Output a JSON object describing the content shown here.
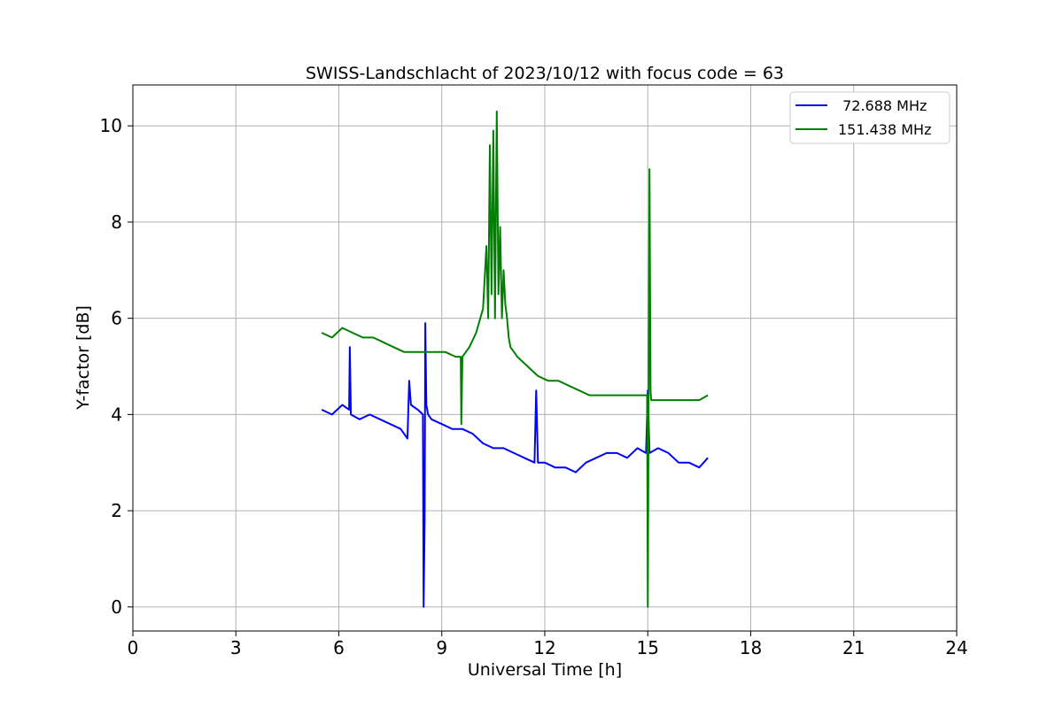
{
  "chart_data": {
    "type": "line",
    "title": "SWISS-Landschlacht of 2023/10/12 with focus code = 63",
    "xlabel": "Universal Time [h]",
    "ylabel": "Y-factor [dB]",
    "xlim": [
      0,
      24
    ],
    "ylim": [
      -0.5,
      10.85
    ],
    "xticks": [
      0,
      3,
      6,
      9,
      12,
      15,
      18,
      21,
      24
    ],
    "yticks": [
      0,
      2,
      4,
      6,
      8,
      10
    ],
    "grid": true,
    "legend_position": "top-right",
    "series": [
      {
        "name": " 72.688 MHz",
        "color": "#0000ff",
        "x": [
          5.5,
          5.8,
          6.1,
          6.3,
          6.32,
          6.35,
          6.6,
          6.9,
          7.2,
          7.5,
          7.8,
          8.0,
          8.05,
          8.1,
          8.3,
          8.45,
          8.47,
          8.5,
          8.52,
          8.55,
          8.6,
          8.7,
          9.0,
          9.3,
          9.6,
          9.9,
          10.2,
          10.5,
          10.8,
          11.1,
          11.4,
          11.7,
          11.75,
          11.8,
          12.0,
          12.3,
          12.6,
          12.9,
          13.2,
          13.5,
          13.8,
          14.1,
          14.4,
          14.7,
          14.95,
          15.0,
          15.05,
          15.3,
          15.6,
          15.9,
          16.2,
          16.5,
          16.75
        ],
        "y": [
          4.1,
          4.0,
          4.2,
          4.1,
          5.4,
          4.0,
          3.9,
          4.0,
          3.9,
          3.8,
          3.7,
          3.5,
          4.7,
          4.2,
          4.1,
          4.0,
          0.0,
          1.8,
          5.9,
          4.2,
          4.0,
          3.9,
          3.8,
          3.7,
          3.7,
          3.6,
          3.4,
          3.3,
          3.3,
          3.2,
          3.1,
          3.0,
          4.5,
          3.0,
          3.0,
          2.9,
          2.9,
          2.8,
          3.0,
          3.1,
          3.2,
          3.2,
          3.1,
          3.3,
          3.2,
          4.5,
          3.2,
          3.3,
          3.2,
          3.0,
          3.0,
          2.9,
          3.1
        ]
      },
      {
        "name": "151.438 MHz",
        "color": "#008000",
        "x": [
          5.5,
          5.8,
          6.1,
          6.4,
          6.7,
          7.0,
          7.3,
          7.6,
          7.9,
          8.2,
          8.5,
          8.8,
          9.1,
          9.4,
          9.55,
          9.57,
          9.6,
          9.8,
          10.0,
          10.2,
          10.3,
          10.35,
          10.4,
          10.45,
          10.5,
          10.55,
          10.6,
          10.65,
          10.7,
          10.75,
          10.8,
          10.85,
          10.9,
          10.95,
          11.0,
          11.2,
          11.5,
          11.8,
          12.1,
          12.4,
          12.7,
          13.0,
          13.3,
          13.6,
          13.9,
          14.2,
          14.5,
          14.8,
          14.98,
          15.0,
          15.05,
          15.08,
          15.1,
          15.3,
          15.6,
          15.9,
          16.2,
          16.5,
          16.75
        ],
        "y": [
          5.7,
          5.6,
          5.8,
          5.7,
          5.6,
          5.6,
          5.5,
          5.4,
          5.3,
          5.3,
          5.3,
          5.3,
          5.3,
          5.2,
          5.2,
          3.8,
          5.2,
          5.4,
          5.7,
          6.2,
          7.5,
          6.0,
          9.6,
          6.5,
          9.9,
          6.0,
          10.3,
          6.5,
          7.9,
          6.0,
          7.0,
          6.3,
          6.0,
          5.6,
          5.4,
          5.2,
          5.0,
          4.8,
          4.7,
          4.7,
          4.6,
          4.5,
          4.4,
          4.4,
          4.4,
          4.4,
          4.4,
          4.4,
          4.4,
          0.0,
          9.1,
          4.5,
          4.3,
          4.3,
          4.3,
          4.3,
          4.3,
          4.3,
          4.4
        ]
      }
    ]
  }
}
